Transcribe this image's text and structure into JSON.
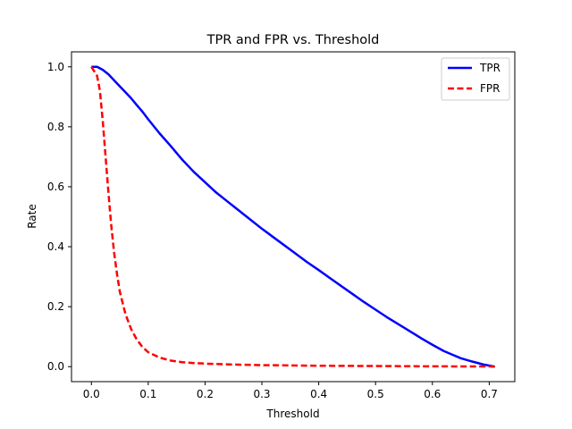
{
  "chart_data": {
    "type": "line",
    "title": "TPR and FPR vs. Threshold",
    "xlabel": "Threshold",
    "ylabel": "Rate",
    "xlim": [
      -0.035,
      0.745
    ],
    "ylim": [
      -0.05,
      1.05
    ],
    "xticks": [
      0.0,
      0.1,
      0.2,
      0.3,
      0.4,
      0.5,
      0.6,
      0.7
    ],
    "xtick_labels": [
      "0.0",
      "0.1",
      "0.2",
      "0.3",
      "0.4",
      "0.5",
      "0.6",
      "0.7"
    ],
    "yticks": [
      0.0,
      0.2,
      0.4,
      0.6,
      0.8,
      1.0
    ],
    "ytick_labels": [
      "0.0",
      "0.2",
      "0.4",
      "0.6",
      "0.8",
      "1.0"
    ],
    "grid": false,
    "legend_position": "top-right",
    "series": [
      {
        "name": "TPR",
        "color": "#0000ff",
        "style": "solid",
        "x": [
          0.0,
          0.01,
          0.02,
          0.03,
          0.04,
          0.05,
          0.06,
          0.07,
          0.08,
          0.09,
          0.1,
          0.12,
          0.14,
          0.16,
          0.18,
          0.2,
          0.22,
          0.25,
          0.28,
          0.3,
          0.32,
          0.35,
          0.38,
          0.4,
          0.42,
          0.45,
          0.48,
          0.5,
          0.52,
          0.55,
          0.58,
          0.6,
          0.62,
          0.65,
          0.67,
          0.69,
          0.71
        ],
        "y": [
          1.0,
          1.0,
          0.99,
          0.975,
          0.955,
          0.935,
          0.915,
          0.895,
          0.872,
          0.85,
          0.825,
          0.778,
          0.735,
          0.69,
          0.65,
          0.615,
          0.58,
          0.535,
          0.49,
          0.46,
          0.432,
          0.39,
          0.348,
          0.322,
          0.295,
          0.255,
          0.215,
          0.19,
          0.165,
          0.13,
          0.095,
          0.073,
          0.052,
          0.028,
          0.017,
          0.007,
          0.0
        ]
      },
      {
        "name": "FPR",
        "color": "#ff0000",
        "style": "dashed",
        "x": [
          0.0,
          0.01,
          0.015,
          0.02,
          0.025,
          0.03,
          0.035,
          0.04,
          0.045,
          0.05,
          0.06,
          0.07,
          0.08,
          0.09,
          0.1,
          0.12,
          0.14,
          0.16,
          0.18,
          0.2,
          0.25,
          0.3,
          0.35,
          0.4,
          0.5,
          0.6,
          0.7,
          0.71
        ],
        "y": [
          1.0,
          0.97,
          0.92,
          0.82,
          0.7,
          0.58,
          0.47,
          0.38,
          0.31,
          0.25,
          0.175,
          0.125,
          0.09,
          0.065,
          0.048,
          0.03,
          0.02,
          0.015,
          0.012,
          0.01,
          0.007,
          0.005,
          0.004,
          0.003,
          0.002,
          0.001,
          0.0005,
          0.0
        ]
      }
    ]
  }
}
